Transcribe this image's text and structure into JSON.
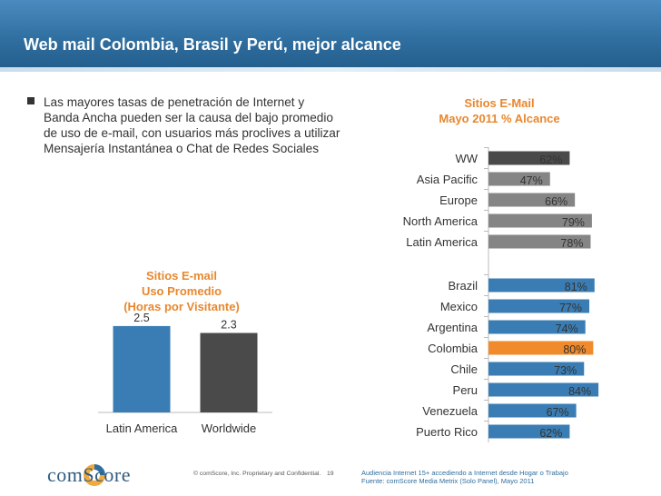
{
  "slide": {
    "title": "Web mail Colombia, Brasil y Perú, mejor alcance",
    "bullet_lines": [
      "Las mayores tasas de penetración de Internet y",
      "Banda Ancha pueden ser la causa del bajo  promedio",
      "de uso de e-mail, con usuarios más proclives a utilizar",
      "Mensajería Instantánea o Chat de Redes Sociales"
    ]
  },
  "footer": {
    "logo": "comScore",
    "confidential": "© comScore, Inc.  Proprietary and Confidential.",
    "page": "19",
    "source_line1": "Audiencia Internet 15+ accediendo a  Internet desde Hogar o Trabajo",
    "source_line2": "Fuente: comScore Media Metrix (Solo Panel), Mayo 2011"
  },
  "colors": {
    "header": "#2f6e9f",
    "accent_title": "#e8872e",
    "bar_blue": "#3a7db4",
    "bar_dark": "#4a4a4a",
    "bar_grey": "#858585",
    "bar_highlight": "#f08a2a"
  },
  "chart_data": [
    {
      "type": "bar",
      "orientation": "vertical",
      "title_lines": [
        "Sitios E-mail",
        "Uso Promedio",
        "(Horas por Visitante)"
      ],
      "categories": [
        "Latin America",
        "Worldwide"
      ],
      "values": [
        2.5,
        2.3
      ],
      "value_labels": [
        "2.5",
        "2.3"
      ],
      "bar_colors": [
        "#3a7db4",
        "#4a4a4a"
      ],
      "ylim": [
        0,
        3.05
      ],
      "grid": false
    },
    {
      "type": "bar",
      "orientation": "horizontal",
      "title_lines": [
        "Sitios E-Mail",
        "Mayo 2011 % Alcance"
      ],
      "groups": [
        {
          "categories": [
            "WW",
            "Asia Pacific",
            "Europe",
            "North America",
            "Latin America"
          ],
          "values": [
            62,
            47,
            66,
            79,
            78
          ],
          "bar_colors": [
            "#4a4a4a",
            "#858585",
            "#858585",
            "#858585",
            "#858585"
          ]
        },
        {
          "categories": [
            "Brazil",
            "Mexico",
            "Argentina",
            "Colombia",
            "Chile",
            "Peru",
            "Venezuela",
            "Puerto Rico"
          ],
          "values": [
            81,
            77,
            74,
            80,
            73,
            84,
            67,
            62
          ],
          "bar_colors": [
            "#3a7db4",
            "#3a7db4",
            "#3a7db4",
            "#f08a2a",
            "#3a7db4",
            "#3a7db4",
            "#3a7db4",
            "#3a7db4"
          ]
        }
      ],
      "value_suffix": "%",
      "xlim": [
        0,
        86
      ],
      "grid": false
    }
  ]
}
